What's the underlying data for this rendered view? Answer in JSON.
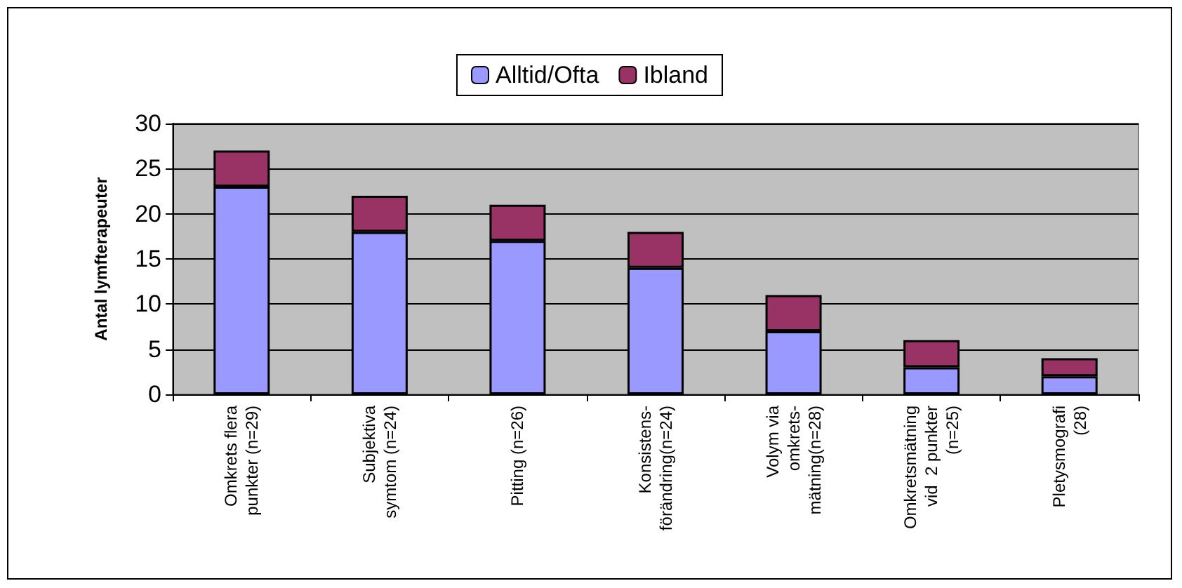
{
  "chart_data": {
    "type": "bar",
    "ylabel": "Antal lymfterapeuter",
    "stacked": true,
    "categories": [
      "Omkrets flera\npunkter (n=29)",
      "Subjektiva\nsymtom (n=24)",
      "Pitting (n=26)",
      "Konsistens-\nförändring(n=24)",
      "Volym via\nomkrets-\nmätning(n=28)",
      "Omkretsmätning\nvid  2 punkter\n(n=25)",
      "Pletysmografi\n(28)"
    ],
    "series": [
      {
        "name": "Alltid/Ofta",
        "color": "#9999ff",
        "values": [
          23,
          18,
          17,
          14,
          7,
          3,
          2
        ]
      },
      {
        "name": "Ibland",
        "color": "#993366",
        "values": [
          4,
          4,
          4,
          4,
          4,
          3,
          2
        ]
      }
    ],
    "ylim": [
      0,
      30
    ],
    "yticks": [
      0,
      5,
      10,
      15,
      20,
      25,
      30
    ],
    "grid": "y",
    "legend": "top"
  }
}
